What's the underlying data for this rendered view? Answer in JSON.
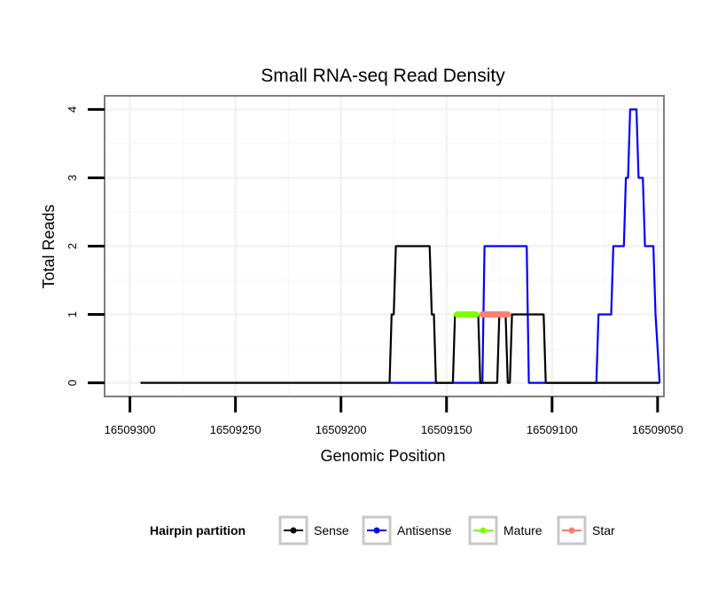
{
  "chart_data": {
    "type": "line",
    "title": "Small RNA-seq Read Density",
    "xlabel": "Genomic Position",
    "ylabel": "Total Reads",
    "x_reversed": true,
    "xlim": [
      16509312,
      16509047
    ],
    "ylim": [
      -0.2,
      4.2
    ],
    "xticks": [
      16509300,
      16509250,
      16509200,
      16509150,
      16509100,
      16509050
    ],
    "yticks": [
      0,
      1,
      2,
      3,
      4
    ],
    "grid": true,
    "legend": {
      "title": "Hairpin partition",
      "position": "bottom",
      "entries": [
        {
          "name": "Sense",
          "color": "#000000"
        },
        {
          "name": "Antisense",
          "color": "#0000ff"
        },
        {
          "name": "Mature",
          "color": "#7fff00"
        },
        {
          "name": "Star",
          "color": "#fa8072"
        }
      ]
    },
    "series": [
      {
        "name": "Sense",
        "color": "#000000",
        "x": [
          16509295,
          16509177,
          16509176,
          16509175,
          16509174,
          16509158,
          16509157,
          16509156,
          16509155,
          16509147,
          16509146,
          16509135,
          16509134,
          16509126,
          16509125,
          16509122,
          16509121,
          16509120,
          16509119,
          16509104,
          16509103,
          16509102,
          16509101,
          16509049
        ],
        "y": [
          0,
          0,
          1,
          1,
          2,
          2,
          1,
          1,
          0,
          0,
          1,
          1,
          0,
          0,
          1,
          1,
          0,
          0,
          1,
          1,
          0,
          0,
          0,
          0
        ]
      },
      {
        "name": "Antisense",
        "color": "#0000ff",
        "x": [
          16509177,
          16509133,
          16509132,
          16509112,
          16509111,
          16509079,
          16509078,
          16509072,
          16509071,
          16509066,
          16509065,
          16509064,
          16509063,
          16509060,
          16509059,
          16509057,
          16509056,
          16509052,
          16509051,
          16509049
        ],
        "y": [
          0,
          0,
          2,
          2,
          0,
          0,
          1,
          1,
          2,
          2,
          3,
          3,
          4,
          4,
          3,
          3,
          2,
          2,
          1,
          0
        ]
      },
      {
        "name": "Mature",
        "color": "#7fff00",
        "x": [
          16509145,
          16509136
        ],
        "y": [
          1,
          1
        ]
      },
      {
        "name": "Star",
        "color": "#fa8072",
        "x": [
          16509133,
          16509121
        ],
        "y": [
          1,
          1
        ]
      }
    ]
  }
}
